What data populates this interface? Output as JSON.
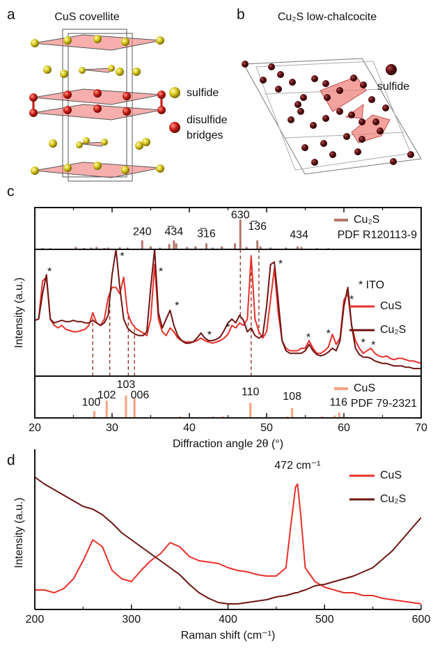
{
  "panels": [
    {
      "label": "a",
      "title": "CuS covellite",
      "legend": [
        {
          "lines": [
            "sulfide"
          ]
        },
        {
          "lines": [
            "disulfide",
            "bridges"
          ]
        }
      ]
    },
    {
      "label": "b",
      "title": "Cu₂S low-chalcocite",
      "legend": [
        {
          "lines": [
            "sulfide"
          ]
        }
      ]
    }
  ],
  "chart_data": [
    {
      "type": "stick",
      "label": "c",
      "name": "Cu₂S",
      "subtitle": "PDF R120113-9",
      "color": "#b4766a",
      "ylim": [
        0,
        140
      ],
      "x": [
        21,
        22,
        25.3,
        26.4,
        27.3,
        28,
        29,
        29.5,
        31,
        32,
        33.9,
        35,
        36.2,
        37.4,
        38,
        38.3,
        39.7,
        40.8,
        42.2,
        43,
        44.2,
        45.9,
        46.6,
        47.4,
        48.8,
        49.2,
        50.5,
        52.5,
        54,
        54.5,
        56.5,
        58
      ],
      "values": [
        5,
        4,
        8,
        5,
        6,
        8,
        5,
        6,
        7,
        6,
        30,
        10,
        6,
        18,
        30,
        20,
        8,
        10,
        20,
        6,
        10,
        20,
        100,
        8,
        30,
        10,
        6,
        6,
        10,
        8,
        4,
        4
      ],
      "peak_labels": [
        {
          "text": "240",
          "x": 33.9,
          "y": 58
        },
        {
          "text": "4̅34",
          "x": 38.0,
          "y": 58
        },
        {
          "text": "3̅16",
          "x": 42.2,
          "y": 51
        },
        {
          "text": "630",
          "x": 46.6,
          "y": 114
        },
        {
          "text": "1̅36",
          "x": 48.8,
          "y": 75
        },
        {
          "text": "434",
          "x": 54.2,
          "y": 47
        }
      ]
    },
    {
      "type": "line",
      "ylabel": "Intensity (a.u.)",
      "ylim": [
        0,
        100
      ],
      "legend": "upper right",
      "legend_note": "* ITO",
      "x": [
        20,
        20.5,
        21,
        21.5,
        22,
        22.5,
        23,
        23.5,
        24,
        24.5,
        25,
        25.5,
        26,
        26.5,
        27,
        27.5,
        28,
        28.5,
        29,
        29.5,
        30,
        30.5,
        31,
        31.5,
        32,
        32.5,
        33,
        33.5,
        34,
        34.5,
        35,
        35.5,
        36,
        36.5,
        37,
        37.5,
        38,
        38.5,
        39,
        39.5,
        40,
        40.5,
        41,
        41.5,
        42,
        42.5,
        43,
        43.5,
        44,
        44.5,
        45,
        45.5,
        46,
        46.5,
        47,
        47.5,
        48,
        48.5,
        49,
        49.5,
        50,
        50.5,
        51,
        51.5,
        52,
        52.5,
        53,
        53.5,
        54,
        54.5,
        55,
        55.5,
        56,
        56.5,
        57,
        57.5,
        58,
        58.5,
        59,
        59.5,
        60,
        60.5,
        61,
        61.5,
        62,
        62.5,
        63,
        63.5,
        64,
        64.5,
        65,
        65.5,
        66,
        66.5,
        67,
        67.5,
        68,
        68.5,
        69,
        69.5,
        70
      ],
      "series": [
        {
          "name": "CuS",
          "color": "#e8302a",
          "values": [
            44,
            45,
            75,
            78,
            45,
            40,
            38,
            40,
            37,
            36,
            35,
            35,
            36,
            37,
            40,
            50,
            42,
            40,
            45,
            62,
            70,
            70,
            65,
            78,
            50,
            42,
            38,
            36,
            34,
            32,
            45,
            88,
            45,
            35,
            32,
            38,
            35,
            30,
            28,
            27,
            27,
            27,
            28,
            30,
            28,
            27,
            26,
            27,
            28,
            30,
            33,
            40,
            38,
            42,
            40,
            45,
            95,
            45,
            35,
            30,
            35,
            60,
            85,
            50,
            28,
            22,
            20,
            20,
            20,
            22,
            22,
            28,
            22,
            18,
            18,
            20,
            23,
            33,
            25,
            30,
            60,
            65,
            40,
            28,
            22,
            18,
            20,
            22,
            18,
            16,
            15,
            16,
            14,
            13,
            14,
            14,
            13,
            12,
            12,
            11,
            10
          ]
        },
        {
          "name": "Cu₂S",
          "color": "#6e1412",
          "values": [
            44,
            45,
            65,
            80,
            45,
            42,
            43,
            44,
            43,
            43,
            44,
            43,
            43,
            42,
            42,
            44,
            42,
            40,
            42,
            48,
            80,
            100,
            70,
            45,
            38,
            35,
            33,
            32,
            32,
            35,
            70,
            100,
            50,
            38,
            45,
            52,
            40,
            32,
            28,
            26,
            26,
            27,
            30,
            34,
            30,
            28,
            28,
            29,
            31,
            36,
            42,
            45,
            42,
            48,
            44,
            35,
            38,
            32,
            30,
            32,
            55,
            88,
            90,
            60,
            28,
            20,
            18,
            18,
            18,
            18,
            20,
            25,
            20,
            17,
            16,
            17,
            19,
            22,
            20,
            28,
            55,
            70,
            40,
            22,
            17,
            15,
            15,
            14,
            12,
            11,
            10,
            10,
            9,
            8,
            8,
            8,
            7,
            7,
            6,
            6,
            6
          ]
        }
      ],
      "annotations": [
        {
          "text": "*",
          "x": 21.9,
          "y": 82
        },
        {
          "text": "*",
          "x": 31.3,
          "y": 94
        },
        {
          "text": "*",
          "x": 36.3,
          "y": 82
        },
        {
          "text": "*",
          "x": 38.4,
          "y": 55
        },
        {
          "text": "*",
          "x": 42.6,
          "y": 32
        },
        {
          "text": "*",
          "x": 45.0,
          "y": 38
        },
        {
          "text": "*",
          "x": 51.8,
          "y": 88
        },
        {
          "text": "*",
          "x": 55.4,
          "y": 30
        },
        {
          "text": "*",
          "x": 58.0,
          "y": 33
        },
        {
          "text": "*",
          "x": 61.0,
          "y": 60
        },
        {
          "text": "*",
          "x": 62.5,
          "y": 26
        },
        {
          "text": "*",
          "x": 63.8,
          "y": 24
        }
      ],
      "ref_lines_bottom": [
        {
          "x": 27.5,
          "y": 46
        },
        {
          "x": 29.7,
          "y": 60
        },
        {
          "x": 32.1,
          "y": 50
        },
        {
          "x": 32.9,
          "y": 40
        },
        {
          "x": 48.0,
          "y": 90
        }
      ],
      "ref_lines_top": [
        {
          "x": 46.6,
          "y": 45
        },
        {
          "x": 49.0,
          "y": 32
        }
      ]
    },
    {
      "type": "stick",
      "name": "CuS",
      "subtitle": "PDF 79-2321",
      "color": "#f5a27f",
      "ylim": [
        0,
        140
      ],
      "xlim": [
        20,
        70
      ],
      "xticks": [
        20,
        30,
        40,
        50,
        60,
        70
      ],
      "xminor_ticks": [
        25,
        35,
        45,
        55,
        65
      ],
      "xlabel": "Diffraction angle 2θ (°)",
      "x": [
        27.7,
        29.3,
        31.8,
        32.9,
        38.8,
        43.1,
        44.3,
        47.9,
        52.7,
        53.3,
        57.2,
        58.8,
        59.4
      ],
      "values": [
        23,
        58,
        75,
        65,
        5,
        5,
        5,
        51,
        5,
        33,
        5,
        8,
        18
      ],
      "peak_labels": [
        {
          "text": "100",
          "x": 27.3,
          "y": 51
        },
        {
          "text": "102",
          "x": 29.3,
          "y": 75
        },
        {
          "text": "103",
          "x": 31.8,
          "y": 110
        },
        {
          "text": "006",
          "x": 33.6,
          "y": 75
        },
        {
          "text": "110",
          "x": 47.9,
          "y": 86
        },
        {
          "text": "108",
          "x": 53.3,
          "y": 70
        },
        {
          "text": "116",
          "x": 59.3,
          "y": 51
        }
      ]
    },
    {
      "type": "line",
      "label": "d",
      "xlabel": "Raman shift (cm⁻¹)",
      "ylabel": "Intensity (a.u.)",
      "legend": "upper right",
      "xlim": [
        200,
        600
      ],
      "xticks": [
        200,
        300,
        400,
        500,
        600
      ],
      "xminor_ticks": [
        250,
        350,
        450,
        550
      ],
      "ylim": [
        0,
        110
      ],
      "x": [
        200,
        210,
        220,
        230,
        240,
        250,
        260,
        270,
        280,
        290,
        300,
        310,
        320,
        330,
        340,
        350,
        360,
        370,
        380,
        390,
        400,
        410,
        420,
        430,
        440,
        450,
        460,
        465,
        470,
        472,
        475,
        480,
        490,
        500,
        510,
        520,
        530,
        540,
        550,
        560,
        570,
        580,
        590,
        600
      ],
      "series": [
        {
          "name": "CuS",
          "color": "#e8302a",
          "values": [
            14,
            14,
            12,
            15,
            22,
            35,
            50,
            45,
            28,
            22,
            20,
            28,
            35,
            40,
            48,
            45,
            38,
            35,
            34,
            33,
            30,
            28,
            27,
            25,
            24,
            24,
            30,
            60,
            88,
            90,
            70,
            30,
            20,
            16,
            14,
            12,
            12,
            10,
            10,
            8,
            7,
            6,
            5,
            4
          ]
        },
        {
          "name": "Cu₂S",
          "color": "#6e1412",
          "values": [
            95,
            90,
            86,
            82,
            78,
            74,
            72,
            68,
            62,
            55,
            50,
            45,
            40,
            35,
            30,
            25,
            18,
            12,
            8,
            5,
            4,
            4,
            5,
            6,
            7,
            9,
            10,
            11,
            12,
            12,
            13,
            14,
            17,
            18,
            20,
            22,
            24,
            27,
            30,
            36,
            42,
            50,
            58,
            66
          ]
        }
      ],
      "annotations": [
        {
          "text": "472 cm⁻¹",
          "x": 472,
          "y": 103
        }
      ]
    }
  ]
}
